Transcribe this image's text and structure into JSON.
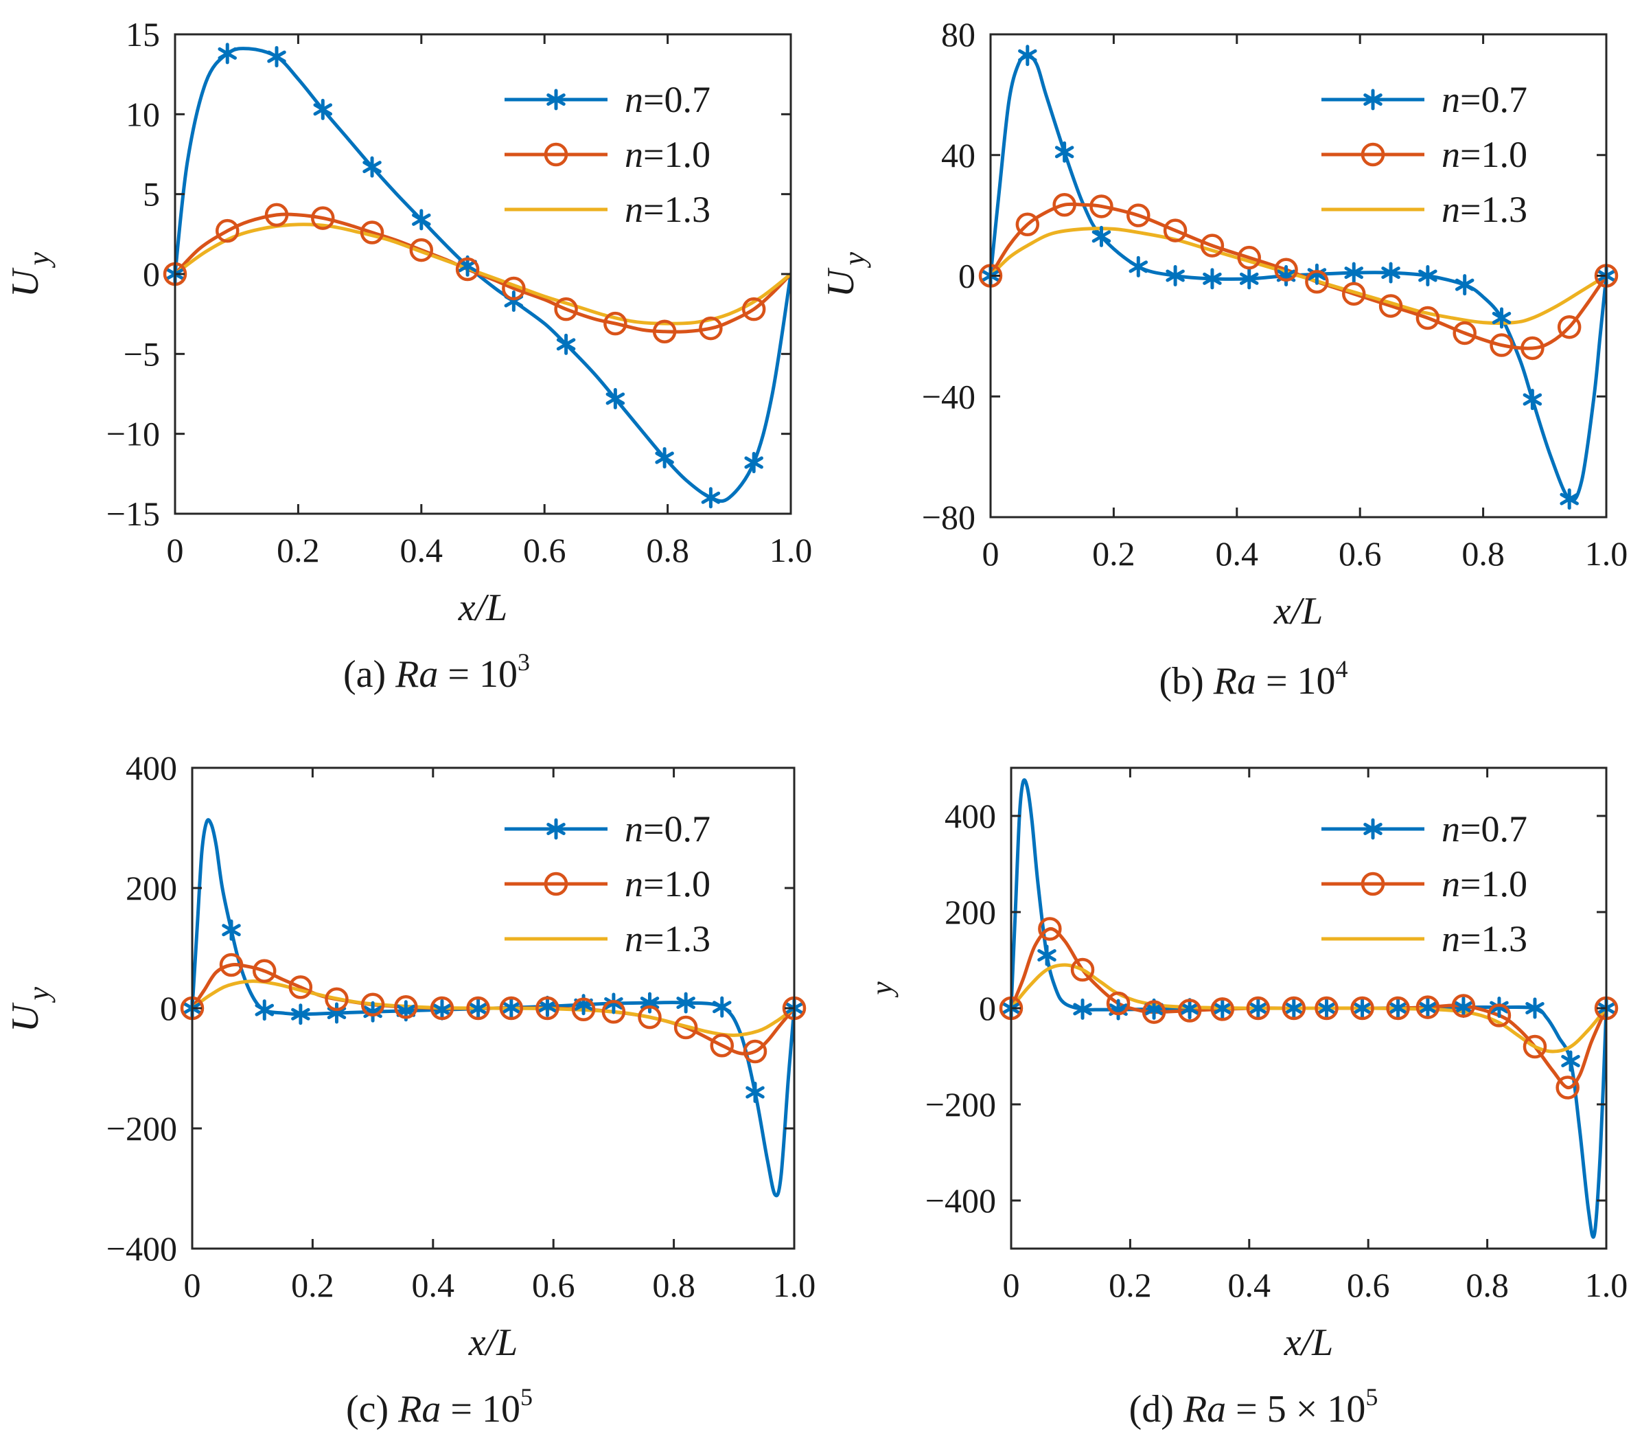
{
  "colors": {
    "n07": "#0072BD",
    "n10": "#D95319",
    "n13": "#EDB120",
    "axis": "#262626"
  },
  "legend_entries": [
    {
      "key": "n07",
      "prefix": "n",
      "value": "=0.7",
      "marker": "asterisk"
    },
    {
      "key": "n10",
      "prefix": "n",
      "value": "=1.0",
      "marker": "circle"
    },
    {
      "key": "n13",
      "prefix": "n",
      "value": "=1.3",
      "marker": "none"
    }
  ],
  "chart_data": [
    {
      "type": "line",
      "panel": "a",
      "caption": {
        "prefix": "(a) ",
        "var": "Ra",
        "mid": " = 10",
        "sup": "3"
      },
      "xlabel": "x/L",
      "ylabel": {
        "main": "U",
        "sub": "y"
      },
      "xlim": [
        0,
        1
      ],
      "ylim": [
        -15,
        15
      ],
      "xticks": [
        0,
        0.2,
        0.4,
        0.6,
        0.8,
        1.0
      ],
      "xtick_labels": [
        "0",
        "0.2",
        "0.4",
        "0.6",
        "0.8",
        "1.0"
      ],
      "yticks": [
        15,
        10,
        5,
        0,
        -5,
        -10,
        -15
      ],
      "ytick_labels": [
        "15",
        "10",
        "5",
        "0",
        "−5",
        "−10",
        "−15"
      ],
      "series": [
        {
          "name": "n=0.7",
          "key": "n07",
          "x": [
            0,
            0.02,
            0.05,
            0.085,
            0.12,
            0.165,
            0.2,
            0.24,
            0.28,
            0.32,
            0.36,
            0.4,
            0.44,
            0.475,
            0.52,
            0.55,
            0.6,
            0.635,
            0.68,
            0.715,
            0.76,
            0.795,
            0.83,
            0.87,
            0.9,
            0.94,
            0.97,
            1.0
          ],
          "y": [
            0,
            7,
            12,
            13.8,
            14.1,
            13.6,
            12.2,
            10.3,
            8.5,
            6.7,
            5.0,
            3.4,
            1.8,
            0.5,
            -0.9,
            -1.7,
            -3.1,
            -4.4,
            -6.2,
            -7.8,
            -9.9,
            -11.5,
            -12.9,
            -14.0,
            -14.0,
            -11.8,
            -7.5,
            0
          ],
          "markers_x": [
            0,
            0.085,
            0.165,
            0.24,
            0.32,
            0.4,
            0.475,
            0.55,
            0.635,
            0.715,
            0.795,
            0.87,
            0.94
          ]
        },
        {
          "name": "n=1.0",
          "key": "n10",
          "x": [
            0,
            0.04,
            0.085,
            0.12,
            0.165,
            0.2,
            0.24,
            0.28,
            0.32,
            0.36,
            0.4,
            0.44,
            0.475,
            0.52,
            0.55,
            0.6,
            0.635,
            0.68,
            0.715,
            0.76,
            0.795,
            0.83,
            0.87,
            0.9,
            0.94,
            0.97,
            1.0
          ],
          "y": [
            0,
            1.6,
            2.7,
            3.3,
            3.7,
            3.7,
            3.5,
            3.1,
            2.6,
            2.1,
            1.5,
            0.9,
            0.3,
            -0.4,
            -0.9,
            -1.6,
            -2.2,
            -2.8,
            -3.1,
            -3.5,
            -3.6,
            -3.6,
            -3.4,
            -3.0,
            -2.2,
            -1.2,
            0
          ],
          "markers_x": [
            0,
            0.085,
            0.165,
            0.24,
            0.32,
            0.4,
            0.475,
            0.55,
            0.635,
            0.715,
            0.795,
            0.87,
            0.94
          ]
        },
        {
          "name": "n=1.3",
          "key": "n13",
          "x": [
            0,
            0.05,
            0.1,
            0.15,
            0.2,
            0.25,
            0.3,
            0.35,
            0.4,
            0.45,
            0.5,
            0.55,
            0.6,
            0.65,
            0.7,
            0.75,
            0.8,
            0.85,
            0.9,
            0.95,
            1.0
          ],
          "y": [
            0,
            1.4,
            2.4,
            2.9,
            3.1,
            3.0,
            2.6,
            2.1,
            1.4,
            0.7,
            0,
            -0.7,
            -1.4,
            -2.0,
            -2.6,
            -3.0,
            -3.1,
            -3.0,
            -2.5,
            -1.5,
            0
          ],
          "markers_x": []
        }
      ]
    },
    {
      "type": "line",
      "panel": "b",
      "caption": {
        "prefix": "(b) ",
        "var": "Ra",
        "mid": " = 10",
        "sup": "4"
      },
      "xlabel": "x/L",
      "ylabel": {
        "main": "U",
        "sub": "y"
      },
      "xlim": [
        0,
        1
      ],
      "ylim": [
        -80,
        80
      ],
      "xticks": [
        0,
        0.2,
        0.4,
        0.6,
        0.8,
        1.0
      ],
      "xtick_labels": [
        "0",
        "0.2",
        "0.4",
        "0.6",
        "0.8",
        "1.0"
      ],
      "yticks": [
        80,
        40,
        0,
        -40,
        -80
      ],
      "ytick_labels": [
        "80",
        "40",
        "0",
        "−40",
        "−80"
      ],
      "series": [
        {
          "name": "n=0.7",
          "key": "n07",
          "x": [
            0,
            0.015,
            0.03,
            0.045,
            0.06,
            0.075,
            0.09,
            0.12,
            0.15,
            0.18,
            0.24,
            0.3,
            0.36,
            0.42,
            0.48,
            0.53,
            0.59,
            0.65,
            0.71,
            0.77,
            0.8,
            0.83,
            0.86,
            0.88,
            0.91,
            0.94,
            0.96,
            0.98,
            0.99,
            1.0
          ],
          "y": [
            0,
            30,
            58,
            70,
            73,
            70,
            60,
            41,
            24,
            13,
            3,
            0,
            -1,
            -1,
            0,
            0.5,
            1,
            1,
            0,
            -3,
            -7,
            -14,
            -28,
            -41,
            -60,
            -74,
            -68,
            -40,
            -20,
            0
          ],
          "markers_x": [
            0,
            0.06,
            0.12,
            0.18,
            0.24,
            0.3,
            0.36,
            0.42,
            0.48,
            0.53,
            0.59,
            0.65,
            0.71,
            0.77,
            0.83,
            0.88,
            0.94,
            1.0
          ]
        },
        {
          "name": "n=1.0",
          "key": "n10",
          "x": [
            0,
            0.03,
            0.06,
            0.09,
            0.12,
            0.15,
            0.18,
            0.24,
            0.3,
            0.36,
            0.42,
            0.48,
            0.53,
            0.59,
            0.65,
            0.71,
            0.77,
            0.83,
            0.88,
            0.91,
            0.94,
            0.97,
            1.0
          ],
          "y": [
            0,
            10,
            17,
            21,
            23.5,
            23.5,
            23,
            20,
            15,
            10,
            6,
            2,
            -2,
            -6,
            -10,
            -14,
            -19,
            -23,
            -24,
            -22,
            -17,
            -9,
            0
          ],
          "markers_x": [
            0,
            0.06,
            0.12,
            0.18,
            0.24,
            0.3,
            0.36,
            0.42,
            0.48,
            0.53,
            0.59,
            0.65,
            0.71,
            0.77,
            0.83,
            0.88,
            0.94,
            1.0
          ]
        },
        {
          "name": "n=1.3",
          "key": "n13",
          "x": [
            0,
            0.03,
            0.06,
            0.1,
            0.15,
            0.2,
            0.25,
            0.3,
            0.35,
            0.4,
            0.45,
            0.5,
            0.55,
            0.6,
            0.65,
            0.7,
            0.75,
            0.8,
            0.85,
            0.88,
            0.92,
            0.96,
            1.0
          ],
          "y": [
            0,
            6,
            10,
            14,
            15.5,
            15.5,
            14,
            12,
            9,
            6,
            3,
            0,
            -3,
            -6,
            -9,
            -12,
            -14,
            -15.5,
            -15.5,
            -14,
            -10,
            -5,
            0
          ],
          "markers_x": []
        }
      ]
    },
    {
      "type": "line",
      "panel": "c",
      "caption": {
        "prefix": "(c) ",
        "var": "Ra",
        "mid": " = 10",
        "sup": "5"
      },
      "xlabel": "x/L",
      "ylabel": {
        "main": "U",
        "sub": "y"
      },
      "xlim": [
        0,
        1
      ],
      "ylim": [
        -400,
        400
      ],
      "xticks": [
        0,
        0.2,
        0.4,
        0.6,
        0.8,
        1.0
      ],
      "xtick_labels": [
        "0",
        "0.2",
        "0.4",
        "0.6",
        "0.8",
        "1.0"
      ],
      "yticks": [
        400,
        200,
        0,
        -200,
        -400
      ],
      "ytick_labels": [
        "400",
        "200",
        "0",
        "−200",
        "−400"
      ],
      "series": [
        {
          "name": "n=0.7",
          "key": "n07",
          "x": [
            0,
            0.008,
            0.016,
            0.024,
            0.032,
            0.04,
            0.05,
            0.065,
            0.08,
            0.1,
            0.12,
            0.15,
            0.18,
            0.24,
            0.3,
            0.4,
            0.5,
            0.59,
            0.65,
            0.7,
            0.76,
            0.82,
            0.88,
            0.91,
            0.935,
            0.955,
            0.968,
            0.978,
            0.99,
            1.0
          ],
          "y": [
            0,
            130,
            260,
            310,
            305,
            270,
            200,
            130,
            70,
            20,
            -3,
            -8,
            -10,
            -8,
            -6,
            -3,
            0,
            3,
            6,
            8,
            9,
            9,
            2,
            -40,
            -140,
            -250,
            -310,
            -280,
            -120,
            0
          ],
          "markers_x": [
            0,
            0.065,
            0.12,
            0.18,
            0.24,
            0.3,
            0.355,
            0.415,
            0.475,
            0.53,
            0.59,
            0.65,
            0.7,
            0.76,
            0.82,
            0.88,
            0.935,
            1.0
          ]
        },
        {
          "name": "n=1.0",
          "key": "n10",
          "x": [
            0,
            0.02,
            0.04,
            0.065,
            0.09,
            0.12,
            0.15,
            0.18,
            0.21,
            0.24,
            0.3,
            0.355,
            0.415,
            0.475,
            0.53,
            0.59,
            0.65,
            0.7,
            0.76,
            0.82,
            0.88,
            0.91,
            0.935,
            0.955,
            0.975,
            1.0
          ],
          "y": [
            0,
            30,
            60,
            72,
            70,
            62,
            48,
            35,
            22,
            15,
            6,
            2,
            0,
            0,
            0,
            0,
            -2,
            -6,
            -15,
            -32,
            -62,
            -75,
            -72,
            -55,
            -30,
            0
          ],
          "markers_x": [
            0,
            0.065,
            0.12,
            0.18,
            0.24,
            0.3,
            0.355,
            0.415,
            0.475,
            0.53,
            0.59,
            0.65,
            0.7,
            0.76,
            0.82,
            0.88,
            0.935,
            1.0
          ]
        },
        {
          "name": "n=1.3",
          "key": "n13",
          "x": [
            0,
            0.03,
            0.06,
            0.1,
            0.14,
            0.18,
            0.24,
            0.3,
            0.4,
            0.5,
            0.6,
            0.7,
            0.76,
            0.82,
            0.86,
            0.9,
            0.94,
            0.97,
            1.0
          ],
          "y": [
            0,
            22,
            38,
            45,
            40,
            30,
            16,
            7,
            1,
            0,
            -1,
            -6,
            -15,
            -30,
            -40,
            -45,
            -38,
            -22,
            0
          ],
          "markers_x": []
        }
      ]
    },
    {
      "type": "line",
      "panel": "d",
      "caption": {
        "prefix": "(d) ",
        "var": "Ra",
        "mid": " = 5 × 10",
        "sup": "5"
      },
      "xlabel": "x/L",
      "ylabel": {
        "main": "",
        "sub": "y"
      },
      "xlim": [
        0,
        1
      ],
      "ylim": [
        -500,
        500
      ],
      "xticks": [
        0,
        0.2,
        0.4,
        0.6,
        0.8,
        1.0
      ],
      "xtick_labels": [
        "0",
        "0.2",
        "0.4",
        "0.6",
        "0.8",
        "1.0"
      ],
      "yticks": [
        400,
        200,
        0,
        -200,
        -400
      ],
      "ytick_labels": [
        "400",
        "200",
        "0",
        "−200",
        "−400"
      ],
      "series": [
        {
          "name": "n=0.7",
          "key": "n07",
          "x": [
            0,
            0.007,
            0.014,
            0.02,
            0.027,
            0.035,
            0.045,
            0.06,
            0.075,
            0.09,
            0.12,
            0.15,
            0.18,
            0.24,
            0.3,
            0.4,
            0.5,
            0.6,
            0.7,
            0.76,
            0.82,
            0.88,
            0.9,
            0.92,
            0.94,
            0.955,
            0.97,
            0.98,
            0.99,
            1.0
          ],
          "y": [
            0,
            200,
            400,
            470,
            460,
            390,
            260,
            110,
            40,
            10,
            -2,
            -3,
            -3,
            -2,
            -1,
            0,
            0,
            0,
            1,
            2,
            2,
            0,
            -20,
            -60,
            -110,
            -250,
            -420,
            -470,
            -300,
            0
          ],
          "markers_x": [
            0,
            0.06,
            0.12,
            0.18,
            0.24,
            0.3,
            0.355,
            0.415,
            0.475,
            0.53,
            0.59,
            0.65,
            0.7,
            0.76,
            0.82,
            0.88,
            0.94,
            1.0
          ]
        },
        {
          "name": "n=1.0",
          "key": "n10",
          "x": [
            0,
            0.02,
            0.04,
            0.065,
            0.09,
            0.12,
            0.15,
            0.18,
            0.21,
            0.24,
            0.3,
            0.355,
            0.415,
            0.475,
            0.53,
            0.59,
            0.65,
            0.7,
            0.76,
            0.82,
            0.85,
            0.88,
            0.91,
            0.935,
            0.955,
            0.975,
            1.0
          ],
          "y": [
            0,
            60,
            130,
            165,
            140,
            80,
            40,
            10,
            -3,
            -8,
            -5,
            -2,
            0,
            0,
            0,
            0,
            0,
            2,
            5,
            -15,
            -40,
            -80,
            -130,
            -165,
            -140,
            -70,
            0
          ],
          "markers_x": [
            0,
            0.065,
            0.12,
            0.18,
            0.24,
            0.3,
            0.355,
            0.415,
            0.475,
            0.53,
            0.59,
            0.65,
            0.7,
            0.76,
            0.82,
            0.88,
            0.935,
            1.0
          ]
        },
        {
          "name": "n=1.3",
          "key": "n13",
          "x": [
            0,
            0.03,
            0.06,
            0.09,
            0.12,
            0.15,
            0.18,
            0.22,
            0.28,
            0.4,
            0.5,
            0.6,
            0.72,
            0.78,
            0.82,
            0.85,
            0.88,
            0.91,
            0.94,
            0.97,
            1.0
          ],
          "y": [
            0,
            45,
            80,
            90,
            80,
            55,
            30,
            12,
            3,
            0,
            0,
            0,
            -3,
            -12,
            -30,
            -55,
            -80,
            -90,
            -80,
            -45,
            0
          ],
          "markers_x": []
        }
      ]
    }
  ]
}
